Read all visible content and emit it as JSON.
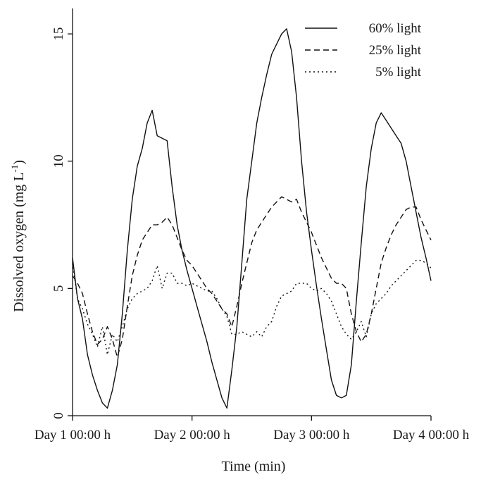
{
  "chart_data": {
    "type": "line",
    "title": "",
    "xlabel": "Time (min)",
    "ylabel_main": "Dissolved oxygen (mg L",
    "ylabel_sup": "-1",
    "ylabel_close": ")",
    "xlim": [
      0,
      4320
    ],
    "ylim": [
      0,
      16
    ],
    "x_ticks": [
      {
        "value": 0,
        "label": "Day 1 00:00 h"
      },
      {
        "value": 1440,
        "label": "Day 2 00:00 h"
      },
      {
        "value": 2880,
        "label": "Day 3 00:00 h"
      },
      {
        "value": 4320,
        "label": "Day 4 00:00 h"
      }
    ],
    "y_ticks": [
      {
        "value": 0,
        "label": "0"
      },
      {
        "value": 5,
        "label": "5"
      },
      {
        "value": 10,
        "label": "10"
      },
      {
        "value": 15,
        "label": "15"
      }
    ],
    "grid": false,
    "legend_position": "top-right",
    "series": [
      {
        "name": "60% light",
        "dash": "solid",
        "x": [
          0,
          60,
          120,
          180,
          240,
          300,
          360,
          420,
          480,
          540,
          600,
          660,
          720,
          780,
          840,
          900,
          960,
          1020,
          1080,
          1140,
          1200,
          1260,
          1320,
          1380,
          1440,
          1500,
          1560,
          1620,
          1680,
          1740,
          1800,
          1860,
          1920,
          1980,
          2040,
          2100,
          2160,
          2220,
          2280,
          2340,
          2400,
          2460,
          2520,
          2580,
          2640,
          2700,
          2760,
          2820,
          2880,
          2940,
          3000,
          3060,
          3120,
          3180,
          3240,
          3300,
          3360,
          3420,
          3480,
          3540,
          3600,
          3660,
          3720,
          3780,
          3840,
          3900,
          3960,
          4020,
          4080,
          4140,
          4200,
          4260,
          4320
        ],
        "y": [
          6.2,
          4.6,
          3.8,
          2.4,
          1.6,
          1.0,
          0.5,
          0.3,
          1.0,
          2.0,
          4.0,
          6.5,
          8.5,
          9.8,
          10.5,
          11.5,
          12.0,
          11.0,
          10.9,
          10.8,
          9.0,
          7.5,
          6.5,
          5.7,
          5.0,
          4.3,
          3.6,
          2.9,
          2.1,
          1.4,
          0.7,
          0.3,
          1.8,
          3.5,
          6.0,
          8.5,
          10.0,
          11.5,
          12.5,
          13.4,
          14.2,
          14.6,
          15.0,
          15.2,
          14.3,
          12.5,
          10.0,
          8.0,
          6.5,
          5.1,
          3.8,
          2.6,
          1.4,
          0.8,
          0.7,
          0.8,
          2.0,
          4.5,
          6.8,
          9.0,
          10.5,
          11.5,
          11.9,
          11.6,
          11.3,
          11.0,
          10.7,
          10.0,
          9.0,
          8.0,
          7.0,
          6.2,
          5.3
        ]
      },
      {
        "name": "25% light",
        "dash": "8 5",
        "x": [
          0,
          60,
          120,
          180,
          240,
          300,
          360,
          420,
          480,
          540,
          600,
          660,
          720,
          780,
          840,
          900,
          960,
          1020,
          1080,
          1140,
          1200,
          1260,
          1320,
          1380,
          1440,
          1500,
          1560,
          1620,
          1680,
          1740,
          1800,
          1860,
          1920,
          1980,
          2040,
          2100,
          2160,
          2220,
          2280,
          2340,
          2400,
          2460,
          2520,
          2580,
          2640,
          2700,
          2760,
          2820,
          2880,
          2940,
          3000,
          3060,
          3120,
          3180,
          3240,
          3300,
          3360,
          3420,
          3480,
          3540,
          3600,
          3660,
          3720,
          3780,
          3840,
          3900,
          3960,
          4020,
          4080,
          4140,
          4200,
          4260,
          4320
        ],
        "y": [
          5.5,
          5.2,
          4.8,
          4.0,
          3.3,
          2.8,
          3.0,
          3.5,
          3.0,
          2.3,
          3.0,
          4.3,
          5.5,
          6.3,
          6.9,
          7.2,
          7.5,
          7.5,
          7.6,
          7.8,
          7.5,
          7.0,
          6.5,
          6.1,
          5.9,
          5.6,
          5.3,
          5.0,
          4.8,
          4.5,
          4.2,
          4.0,
          3.5,
          4.3,
          5.2,
          6.0,
          6.8,
          7.3,
          7.6,
          7.9,
          8.2,
          8.4,
          8.6,
          8.5,
          8.4,
          8.5,
          8.0,
          7.6,
          7.2,
          6.7,
          6.2,
          5.8,
          5.4,
          5.2,
          5.2,
          5.0,
          4.0,
          3.3,
          2.9,
          3.2,
          4.0,
          5.0,
          6.0,
          6.6,
          7.1,
          7.5,
          7.8,
          8.1,
          8.2,
          8.2,
          7.7,
          7.3,
          6.9
        ]
      },
      {
        "name": "5% light",
        "dash": "2 4",
        "x": [
          0,
          60,
          120,
          180,
          240,
          300,
          360,
          420,
          480,
          540,
          600,
          660,
          720,
          780,
          840,
          900,
          960,
          1020,
          1080,
          1140,
          1200,
          1260,
          1320,
          1380,
          1440,
          1500,
          1560,
          1620,
          1680,
          1740,
          1800,
          1860,
          1920,
          1980,
          2040,
          2100,
          2160,
          2220,
          2280,
          2340,
          2400,
          2460,
          2520,
          2580,
          2640,
          2700,
          2760,
          2820,
          2880,
          2940,
          3000,
          3060,
          3120,
          3180,
          3240,
          3300,
          3360,
          3420,
          3480,
          3540,
          3600,
          3660,
          3720,
          3780,
          3840,
          3900,
          3960,
          4020,
          4080,
          4140,
          4200,
          4260,
          4320
        ],
        "y": [
          6.0,
          4.6,
          4.2,
          3.6,
          3.2,
          2.7,
          3.5,
          2.4,
          3.2,
          2.9,
          3.5,
          4.2,
          4.6,
          4.8,
          4.9,
          5.0,
          5.3,
          5.9,
          5.0,
          5.6,
          5.6,
          5.2,
          5.2,
          5.1,
          5.2,
          5.1,
          5.0,
          4.9,
          4.9,
          4.6,
          4.2,
          3.9,
          3.2,
          3.2,
          3.3,
          3.2,
          3.1,
          3.3,
          3.1,
          3.5,
          3.7,
          4.3,
          4.7,
          4.8,
          4.9,
          5.2,
          5.2,
          5.2,
          5.0,
          4.9,
          5.0,
          4.8,
          4.5,
          4.0,
          3.5,
          3.2,
          3.0,
          3.3,
          3.7,
          3.1,
          4.0,
          4.4,
          4.6,
          4.8,
          5.1,
          5.3,
          5.5,
          5.7,
          5.9,
          6.1,
          6.1,
          6.0,
          5.8
        ]
      }
    ]
  }
}
